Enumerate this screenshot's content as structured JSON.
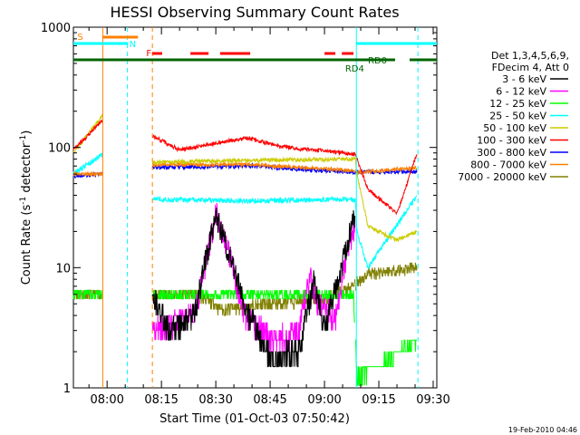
{
  "chart_data": {
    "type": "line",
    "title": "HESSI Observing Summary Count Rates",
    "xlabel": "Start Time (01-Oct-03 07:50:42)",
    "ylabel_main": "Count Rate (s",
    "ylabel_sup1": "-1",
    "ylabel_mid": " detector",
    "ylabel_sup2": "-1",
    "ylabel_end": ")",
    "yscale": "log",
    "ylim": [
      1,
      1000
    ],
    "xlim_minutes": [
      470.7,
      571.0
    ],
    "y_ticks": [
      {
        "value": 1,
        "label": "1"
      },
      {
        "value": 10,
        "label": "10"
      },
      {
        "value": 100,
        "label": "100"
      },
      {
        "value": 1000,
        "label": "1000"
      }
    ],
    "x_ticks": [
      {
        "value": 480,
        "label": "08:00"
      },
      {
        "value": 495,
        "label": "08:15"
      },
      {
        "value": 510,
        "label": "08:30"
      },
      {
        "value": 525,
        "label": "08:45"
      },
      {
        "value": 540,
        "label": "09:00"
      },
      {
        "value": 555,
        "label": "09:15"
      },
      {
        "value": 570,
        "label": "09:30"
      }
    ],
    "legend_header": [
      "Det 1,3,4,5,6,9,",
      "FDecim 4, Att 0"
    ],
    "series": [
      {
        "name": "3 - 6 keV",
        "color": "#000000"
      },
      {
        "name": "6 - 12 keV",
        "color": "#ff00ff"
      },
      {
        "name": "12 - 25 keV",
        "color": "#00ff00"
      },
      {
        "name": "25 - 50 keV",
        "color": "#00ffff"
      },
      {
        "name": "50 - 100 keV",
        "color": "#cccc00"
      },
      {
        "name": "100 - 300 keV",
        "color": "#ff0000"
      },
      {
        "name": "300 - 800 keV",
        "color": "#0000ff"
      },
      {
        "name": "800 - 7000 keV",
        "color": "#ff8000"
      },
      {
        "name": "7000 - 20000 keV",
        "color": "#808000"
      }
    ],
    "flags": [
      {
        "label": "S",
        "color": "#ff8000"
      },
      {
        "label": "N",
        "color": "#00ffff"
      },
      {
        "label": "F",
        "color": "#ff0000"
      },
      {
        "label": "RD0",
        "color": "#006400"
      },
      {
        "label": "RD4",
        "color": "#006400"
      }
    ]
  },
  "footer": {
    "date_stamp": "19-Feb-2010 04:46"
  }
}
